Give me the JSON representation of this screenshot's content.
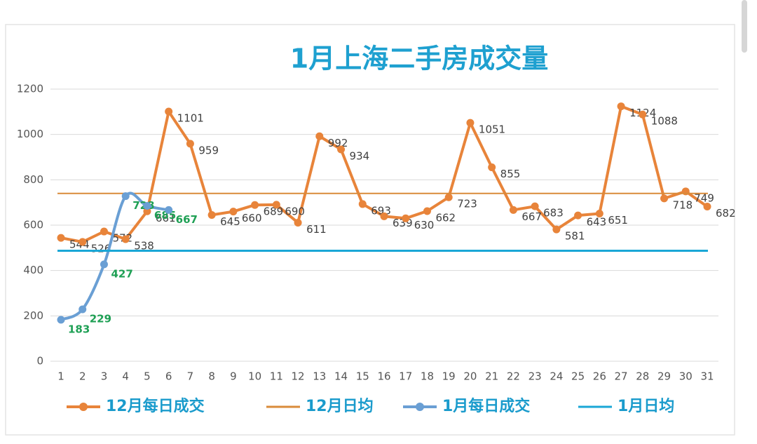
{
  "chart_data": {
    "type": "line",
    "title": "1月上海二手房成交量",
    "categories": [
      "1",
      "2",
      "3",
      "4",
      "5",
      "6",
      "7",
      "8",
      "9",
      "10",
      "11",
      "12",
      "13",
      "14",
      "15",
      "16",
      "17",
      "18",
      "19",
      "20",
      "21",
      "22",
      "23",
      "24",
      "25",
      "26",
      "27",
      "28",
      "29",
      "30",
      "31"
    ],
    "ylim": [
      0,
      1200
    ],
    "yticks": [
      0,
      200,
      400,
      600,
      800,
      1000,
      1200
    ],
    "grid": true,
    "series": [
      {
        "name": "12月每日成交",
        "color": "#e8843a",
        "values": [
          544,
          526,
          572,
          538,
          661,
          1101,
          959,
          645,
          660,
          689,
          690,
          611,
          992,
          934,
          693,
          639,
          630,
          662,
          723,
          1051,
          855,
          667,
          683,
          581,
          643,
          651,
          1124,
          1088,
          718,
          749,
          682
        ]
      },
      {
        "name": "12月日均",
        "color": "#d98b3a",
        "value": 740
      },
      {
        "name": "1月每日成交",
        "color": "#6a9fd4",
        "values": [
          183,
          229,
          427,
          728,
          685,
          667,
          null,
          null,
          null,
          null,
          null,
          null,
          null,
          null,
          null,
          null,
          null,
          null,
          null,
          null,
          null,
          null,
          null,
          null,
          null,
          null,
          null,
          null,
          null,
          null,
          null
        ]
      },
      {
        "name": "1月日均",
        "color": "#1aa7d6",
        "value": 487
      }
    ]
  }
}
